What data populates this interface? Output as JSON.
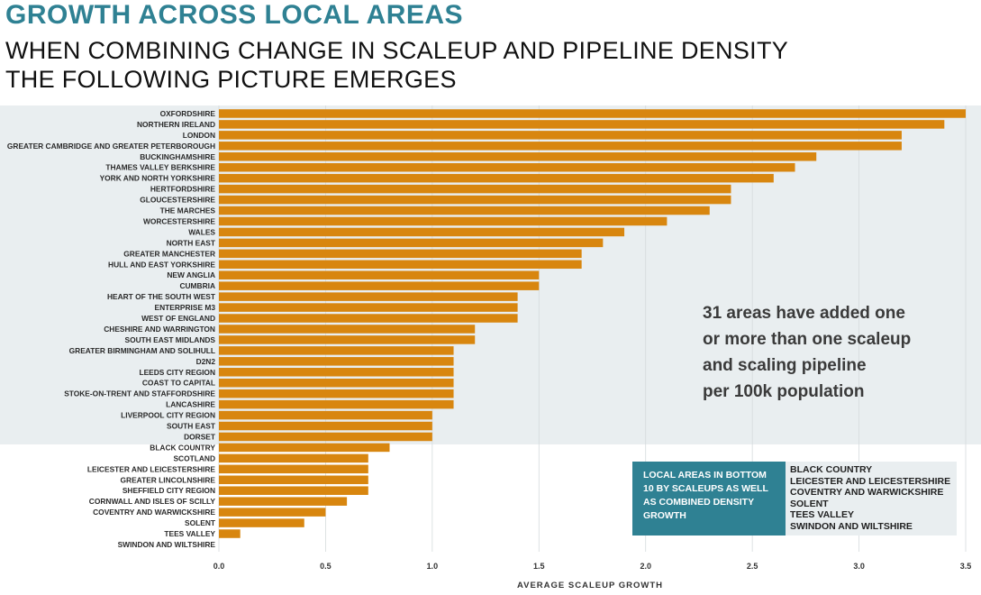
{
  "header": {
    "title": "GROWTH ACROSS LOCAL AREAS",
    "subtitle": "WHEN COMBINING CHANGE IN SCALEUP AND PIPELINE DENSITY THE FOLLOWING PICTURE EMERGES"
  },
  "annotation": {
    "lines": [
      "31 areas have added one",
      "or more than one scaleup",
      "and scaling pipeline",
      "per 100k population"
    ]
  },
  "legend_box": {
    "label_lines": [
      "LOCAL AREAS IN BOTTOM",
      "10 BY SCALEUPS AS WELL",
      "AS COMBINED DENSITY",
      "GROWTH"
    ],
    "items": [
      "BLACK COUNTRY",
      "LEICESTER AND LEICESTERSHIRE",
      "COVENTRY AND WARWICKSHIRE",
      "SOLENT",
      "TEES VALLEY",
      "SWINDON AND WILTSHIRE"
    ]
  },
  "colors": {
    "title": "#2f8193",
    "bar": "#d8860f",
    "highlight_band": "#e9eef0",
    "legend_label_bg": "#2f8193",
    "grid": "#d5dadc"
  },
  "chart_data": {
    "type": "bar",
    "orientation": "horizontal",
    "xlabel": "AVERAGE SCALEUP GROWTH",
    "xlim": [
      0,
      3.5
    ],
    "xticks": [
      0.0,
      0.5,
      1.0,
      1.5,
      2.0,
      2.5,
      3.0,
      3.5
    ],
    "xtick_labels": [
      "0.0",
      "0.5",
      "1.0",
      "1.5",
      "2.0",
      "2.5",
      "3.0",
      "3.5"
    ],
    "grid": true,
    "highlighted_count": 31,
    "categories": [
      "OXFORDSHIRE",
      "NORTHERN IRELAND",
      "LONDON",
      "GREATER CAMBRIDGE AND GREATER PETERBOROUGH",
      "BUCKINGHAMSHIRE",
      "THAMES VALLEY BERKSHIRE",
      "YORK AND NORTH YORKSHIRE",
      "HERTFORDSHIRE",
      "GLOUCESTERSHIRE",
      "THE MARCHES",
      "WORCESTERSHIRE",
      "WALES",
      "NORTH EAST",
      "GREATER MANCHESTER",
      "HULL AND EAST YORKSHIRE",
      "NEW ANGLIA",
      "CUMBRIA",
      "HEART OF THE SOUTH WEST",
      "ENTERPRISE M3",
      "WEST OF ENGLAND",
      "CHESHIRE AND WARRINGTON",
      "SOUTH EAST MIDLANDS",
      "GREATER BIRMINGHAM AND SOLIHULL",
      "D2N2",
      "LEEDS CITY REGION",
      "COAST TO CAPITAL",
      "STOKE-ON-TRENT AND STAFFORDSHIRE",
      "LANCASHIRE",
      "LIVERPOOL CITY REGION",
      "SOUTH EAST",
      "DORSET",
      "BLACK COUNTRY",
      "SCOTLAND",
      "LEICESTER AND LEICESTERSHIRE",
      "GREATER LINCOLNSHIRE",
      "SHEFFIELD CITY REGION",
      "CORNWALL AND ISLES OF SCILLY",
      "COVENTRY AND WARWICKSHIRE",
      "SOLENT",
      "TEES VALLEY",
      "SWINDON AND WILTSHIRE"
    ],
    "values": [
      3.5,
      3.4,
      3.2,
      3.2,
      2.8,
      2.7,
      2.6,
      2.4,
      2.4,
      2.3,
      2.1,
      1.9,
      1.8,
      1.7,
      1.7,
      1.5,
      1.5,
      1.4,
      1.4,
      1.4,
      1.2,
      1.2,
      1.1,
      1.1,
      1.1,
      1.1,
      1.1,
      1.1,
      1.0,
      1.0,
      1.0,
      0.8,
      0.7,
      0.7,
      0.7,
      0.7,
      0.6,
      0.5,
      0.4,
      0.1,
      0.0
    ]
  }
}
